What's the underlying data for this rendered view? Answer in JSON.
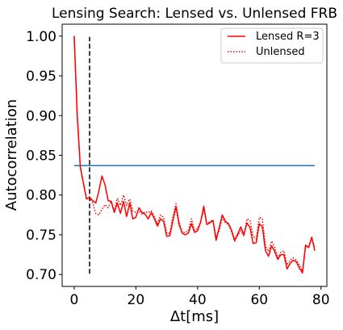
{
  "chart_data": {
    "type": "line",
    "title": "Lensing Search: Lensed vs. Unlensed FRB",
    "xlabel": "Δt[ms]",
    "ylabel": "Autocorrelation",
    "xlim": [
      -3.9,
      81.9
    ],
    "ylim": [
      0.685,
      1.015
    ],
    "xticks": [
      0,
      20,
      40,
      60,
      80
    ],
    "xtick_labels": [
      "0",
      "20",
      "40",
      "60",
      "80"
    ],
    "yticks": [
      0.7,
      0.75,
      0.8,
      0.85,
      0.9,
      0.95,
      1.0
    ],
    "ytick_labels": [
      "0.70",
      "0.75",
      "0.80",
      "0.85",
      "0.90",
      "0.95",
      "1.00"
    ],
    "grid": false,
    "legend_position": "top-right",
    "colors": {
      "lensed": "#ff0000",
      "unlensed": "#ff0000",
      "threshold": "#1f77b4",
      "marker": "#000000"
    },
    "series": [
      {
        "name": "Lensed R=3",
        "style": "solid",
        "x": [
          0,
          1,
          2,
          3,
          4,
          5,
          6,
          7,
          8,
          9,
          10,
          11,
          12,
          13,
          14,
          15,
          16,
          17,
          18,
          19,
          20,
          21,
          22,
          23,
          24,
          25,
          26,
          27,
          28,
          29,
          30,
          31,
          32,
          33,
          34,
          35,
          36,
          37,
          38,
          39,
          40,
          41,
          42,
          43,
          44,
          45,
          46,
          47,
          48,
          49,
          50,
          51,
          52,
          53,
          54,
          55,
          56,
          57,
          58,
          59,
          60,
          61,
          62,
          63,
          64,
          65,
          66,
          67,
          68,
          69,
          70,
          71,
          72,
          73,
          74,
          75,
          76,
          77,
          78
        ],
        "y": [
          1.0,
          0.9,
          0.835,
          0.815,
          0.795,
          0.797,
          0.793,
          0.79,
          0.805,
          0.824,
          0.813,
          0.793,
          0.792,
          0.778,
          0.79,
          0.777,
          0.792,
          0.773,
          0.79,
          0.77,
          0.772,
          0.784,
          0.778,
          0.776,
          0.77,
          0.778,
          0.77,
          0.761,
          0.77,
          0.767,
          0.748,
          0.749,
          0.768,
          0.785,
          0.763,
          0.752,
          0.75,
          0.752,
          0.764,
          0.753,
          0.755,
          0.766,
          0.786,
          0.763,
          0.765,
          0.768,
          0.743,
          0.759,
          0.775,
          0.767,
          0.764,
          0.756,
          0.743,
          0.751,
          0.76,
          0.75,
          0.765,
          0.759,
          0.739,
          0.74,
          0.764,
          0.76,
          0.73,
          0.723,
          0.736,
          0.729,
          0.719,
          0.725,
          0.725,
          0.707,
          0.714,
          0.718,
          0.716,
          0.708,
          0.702,
          0.737,
          0.734,
          0.747,
          0.73
        ]
      },
      {
        "name": "Unlensed",
        "style": "dotted",
        "x": [
          0,
          1,
          2,
          3,
          4,
          5,
          6,
          7,
          8,
          9,
          10,
          11,
          12,
          13,
          14,
          15,
          16,
          17,
          18,
          19,
          20,
          21,
          22,
          23,
          24,
          25,
          26,
          27,
          28,
          29,
          30,
          31,
          32,
          33,
          34,
          35,
          36,
          37,
          38,
          39,
          40,
          41,
          42,
          43,
          44,
          45,
          46,
          47,
          48,
          49,
          50,
          51,
          52,
          53,
          54,
          55,
          56,
          57,
          58,
          59,
          60,
          61,
          62,
          63,
          64,
          65,
          66,
          67,
          68,
          69,
          70,
          71,
          72,
          73,
          74,
          75,
          76,
          77,
          78
        ],
        "y": [
          1.0,
          0.9,
          0.835,
          0.815,
          0.795,
          0.797,
          0.79,
          0.777,
          0.775,
          0.782,
          0.788,
          0.784,
          0.792,
          0.78,
          0.796,
          0.787,
          0.8,
          0.787,
          0.795,
          0.78,
          0.778,
          0.78,
          0.776,
          0.779,
          0.778,
          0.78,
          0.773,
          0.764,
          0.775,
          0.772,
          0.752,
          0.752,
          0.773,
          0.789,
          0.766,
          0.753,
          0.753,
          0.755,
          0.77,
          0.756,
          0.758,
          0.767,
          0.782,
          0.763,
          0.767,
          0.768,
          0.747,
          0.755,
          0.772,
          0.765,
          0.763,
          0.754,
          0.742,
          0.749,
          0.755,
          0.748,
          0.77,
          0.768,
          0.748,
          0.745,
          0.772,
          0.77,
          0.736,
          0.729,
          0.742,
          0.734,
          0.721,
          0.728,
          0.73,
          0.712,
          0.718,
          0.721,
          0.718,
          0.712,
          0.704,
          0.735,
          0.735,
          0.746,
          0.733
        ]
      }
    ],
    "reference_lines": [
      {
        "orientation": "horizontal",
        "y": 0.837,
        "x_range": [
          0,
          78
        ],
        "color": "#1f77b4",
        "style": "solid"
      },
      {
        "orientation": "vertical",
        "x": 5,
        "y_range": [
          0.701,
          0.999
        ],
        "color": "#000000",
        "style": "dashed"
      }
    ]
  }
}
